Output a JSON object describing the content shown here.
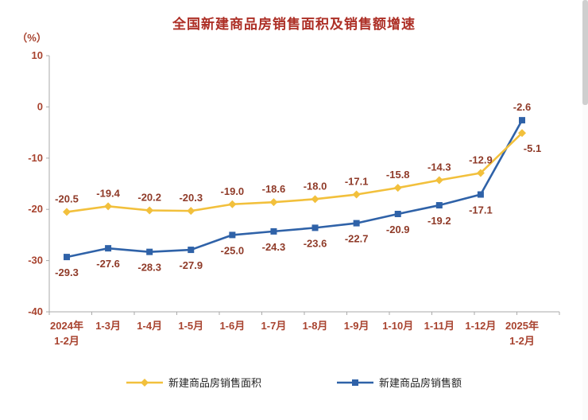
{
  "chart": {
    "title_color": "#ad2f26"
  },
  "chart_data": {
    "type": "line",
    "title": "全国新建商品房销售面积及销售额增速",
    "ylabel": "（%）",
    "xlabel": "",
    "ylim": [
      -40,
      10
    ],
    "yticks": [
      10,
      0,
      -10,
      -20,
      -30,
      -40
    ],
    "grid": false,
    "legend_position": "bottom",
    "categories": [
      "2024年\n1-2月",
      "1-3月",
      "1-4月",
      "1-5月",
      "1-6月",
      "1-7月",
      "1-8月",
      "1-9月",
      "1-10月",
      "1-11月",
      "1-12月",
      "2025年\n1-2月"
    ],
    "series": [
      {
        "name": "新建商品房销售面积",
        "color": "#f2c03c",
        "marker": "diamond",
        "values": [
          -20.5,
          -19.4,
          -20.2,
          -20.3,
          -19.0,
          -18.6,
          -18.0,
          -17.1,
          -15.8,
          -14.3,
          -12.9,
          -5.1
        ]
      },
      {
        "name": "新建商品房销售额",
        "color": "#2f62a8",
        "marker": "square",
        "values": [
          -29.3,
          -27.6,
          -28.3,
          -27.9,
          -25.0,
          -24.3,
          -23.6,
          -22.7,
          -20.9,
          -19.2,
          -17.1,
          -2.6
        ]
      }
    ],
    "colors": {
      "axis": "#aaaaaa",
      "tick_text": "#a8432f",
      "data_label": "#8f3a28"
    }
  }
}
